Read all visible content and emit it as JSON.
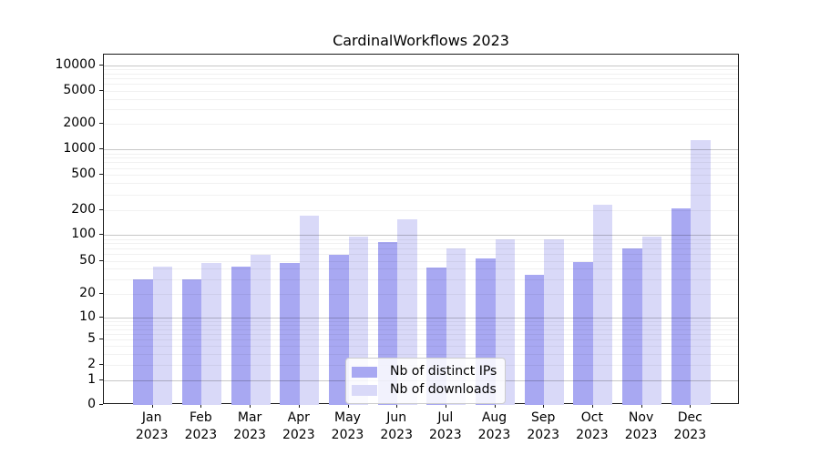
{
  "chart_data": {
    "type": "bar",
    "title": "CardinalWorkflows 2023",
    "categories": [
      {
        "month": "Jan",
        "year": "2023"
      },
      {
        "month": "Feb",
        "year": "2023"
      },
      {
        "month": "Mar",
        "year": "2023"
      },
      {
        "month": "Apr",
        "year": "2023"
      },
      {
        "month": "May",
        "year": "2023"
      },
      {
        "month": "Jun",
        "year": "2023"
      },
      {
        "month": "Jul",
        "year": "2023"
      },
      {
        "month": "Aug",
        "year": "2023"
      },
      {
        "month": "Sep",
        "year": "2023"
      },
      {
        "month": "Oct",
        "year": "2023"
      },
      {
        "month": "Nov",
        "year": "2023"
      },
      {
        "month": "Dec",
        "year": "2023"
      }
    ],
    "series": [
      {
        "name": "Nb of distinct IPs",
        "color": "#a8a8f2",
        "values": [
          30,
          30,
          42,
          47,
          58,
          83,
          41,
          53,
          34,
          48,
          69,
          212
        ]
      },
      {
        "name": "Nb of downloads",
        "color": "#d9d9f8",
        "values": [
          42,
          47,
          59,
          173,
          96,
          157,
          70,
          88,
          90,
          231,
          95,
          1280
        ]
      }
    ],
    "yscale": "symlog",
    "ylim": [
      0,
      13000
    ],
    "yticks": [
      {
        "label": "10000",
        "value": 10000
      },
      {
        "label": "5000",
        "value": 5000
      },
      {
        "label": "2000",
        "value": 2000
      },
      {
        "label": "1000",
        "value": 1000
      },
      {
        "label": "500",
        "value": 500
      },
      {
        "label": "200",
        "value": 200
      },
      {
        "label": "100",
        "value": 100
      },
      {
        "label": "50",
        "value": 50
      },
      {
        "label": "20",
        "value": 20
      },
      {
        "label": "10",
        "value": 10
      },
      {
        "label": "5",
        "value": 5
      },
      {
        "label": "2",
        "value": 2
      },
      {
        "label": "1",
        "value": 1
      },
      {
        "label": "0",
        "value": 0
      }
    ],
    "grid": {
      "major_values": [
        1,
        10,
        100,
        1000,
        10000
      ],
      "color": "#b0b0b0"
    },
    "legend": {
      "position": "lower center"
    }
  }
}
